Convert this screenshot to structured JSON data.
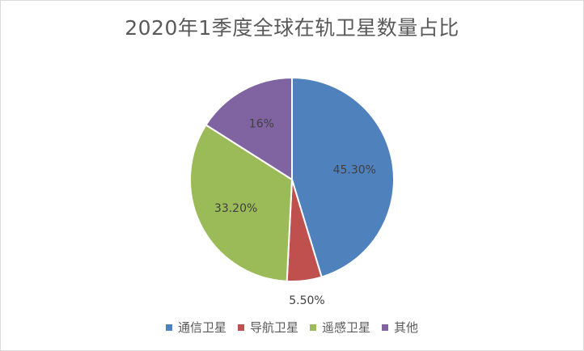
{
  "chart_data": {
    "type": "pie",
    "title": "2020年1季度全球在轨卫星数量占比",
    "categories": [
      "通信卫星",
      "导航卫星",
      "遥感卫星",
      "其他"
    ],
    "values": [
      45.3,
      5.5,
      33.2,
      16
    ],
    "data_labels": [
      "45.30%",
      "5.50%",
      "33.20%",
      "16%"
    ],
    "colors": [
      "#4f81bd",
      "#c0504d",
      "#9bbb59",
      "#8064a2"
    ],
    "legend": "bottom"
  }
}
